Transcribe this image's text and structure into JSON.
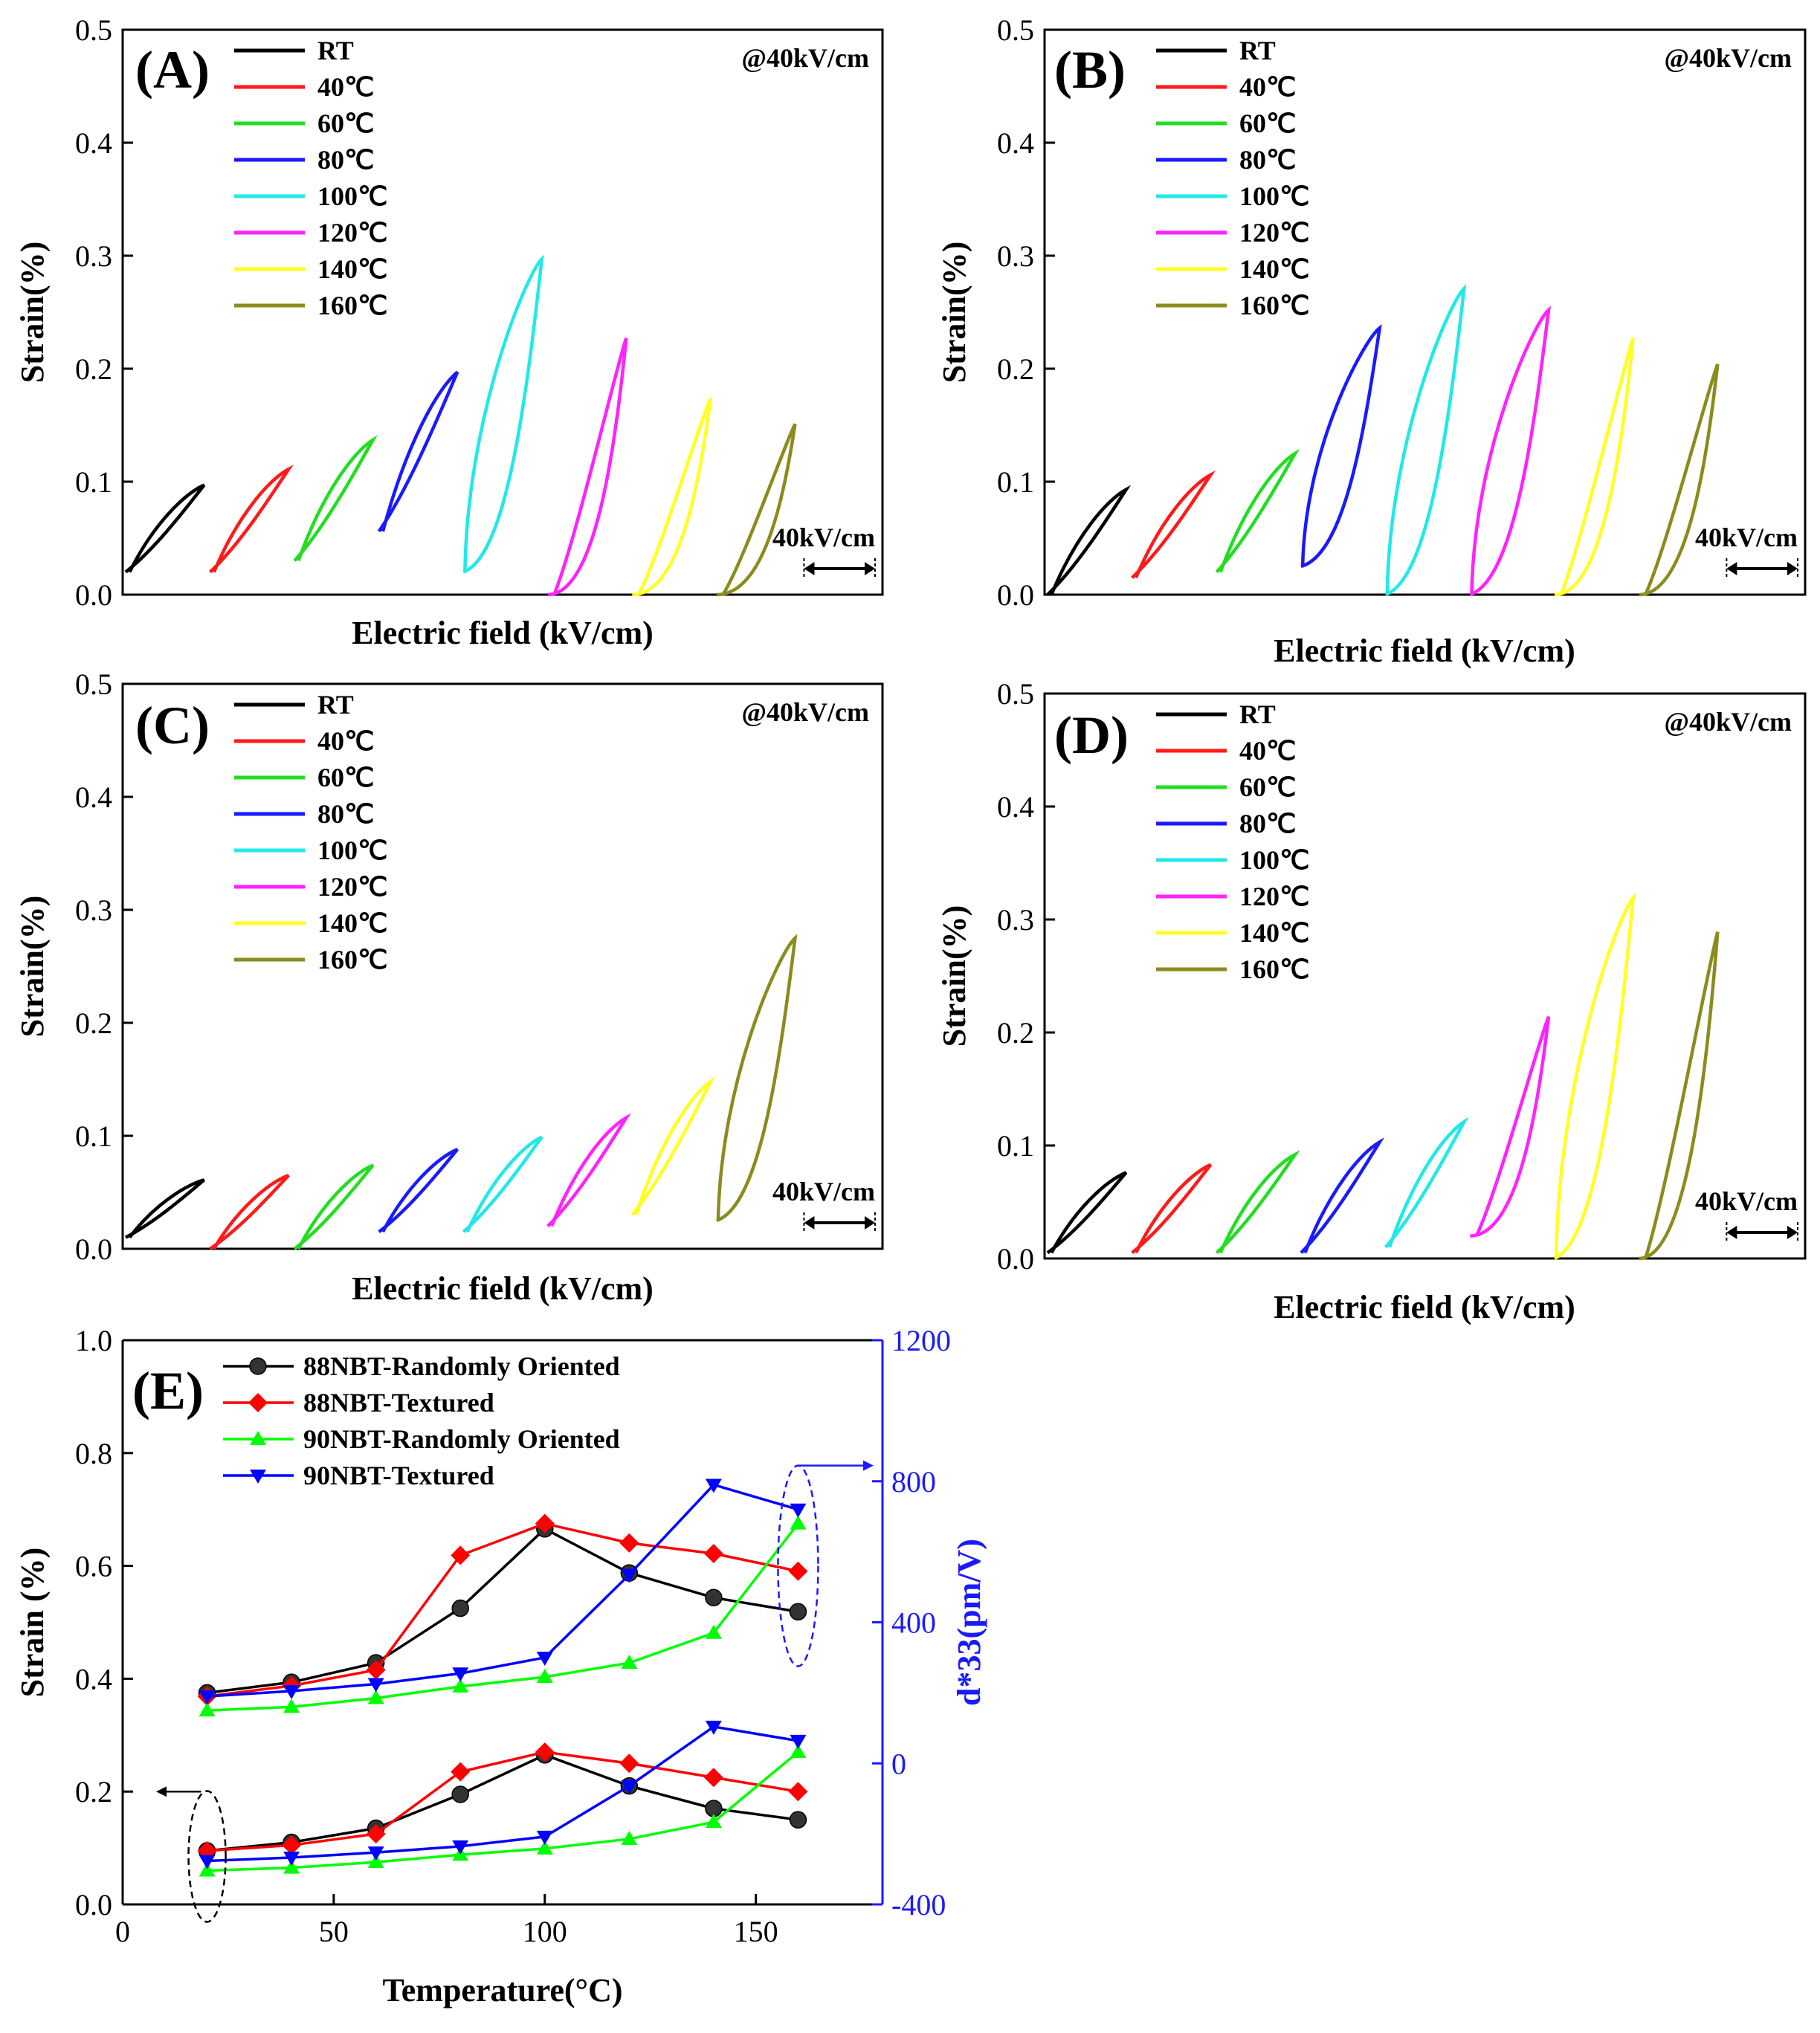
{
  "figure": {
    "colors": {
      "RT": "#000000",
      "40℃": "#ff1a1a",
      "60℃": "#22dd22",
      "80℃": "#1a1aff",
      "100℃": "#22e8e8",
      "120℃": "#ff22ff",
      "140℃": "#ffff22",
      "160℃": "#8b8b1e"
    },
    "series_colors_e": {
      "88NBT-Randomly Oriented": "#000000",
      "88NBT-Textured": "#ff0000",
      "90NBT-Randomly Oriented": "#00ff00",
      "90NBT-Textured": "#0000ff"
    }
  },
  "chart_data": [
    {
      "panel": "(A)",
      "type": "line",
      "description": "strain-field loops",
      "note": "@40kV/cm",
      "field_scale_label": "40kV/cm",
      "xlabel": "Electric field (kV/cm)",
      "ylabel": "Strain(%)",
      "ylim": [
        0,
        0.5
      ],
      "yticks": [
        "0.0",
        "0.1",
        "0.2",
        "0.3",
        "0.4",
        "0.5"
      ],
      "legend": [
        "RT",
        "40℃",
        "60℃",
        "80℃",
        "100℃",
        "120℃",
        "140℃",
        "160℃"
      ],
      "loops": [
        {
          "name": "RT",
          "start": 0.02,
          "peak": 0.097,
          "shape": "lin"
        },
        {
          "name": "40℃",
          "start": 0.02,
          "peak": 0.111,
          "shape": "lin"
        },
        {
          "name": "60℃",
          "start": 0.03,
          "peak": 0.137,
          "shape": "lin"
        },
        {
          "name": "80℃",
          "start": 0.056,
          "peak": 0.197,
          "shape": "lin"
        },
        {
          "name": "100℃",
          "start": 0.02,
          "peak": 0.297,
          "shape": "wide"
        },
        {
          "name": "120℃",
          "start": 0.0,
          "peak": 0.227,
          "shape": "curve"
        },
        {
          "name": "140℃",
          "start": 0.0,
          "peak": 0.174,
          "shape": "curve"
        },
        {
          "name": "160℃",
          "start": 0.0,
          "peak": 0.151,
          "shape": "curve"
        }
      ]
    },
    {
      "panel": "(B)",
      "type": "line",
      "description": "strain-field loops",
      "note": "@40kV/cm",
      "field_scale_label": "40kV/cm",
      "xlabel": "Electric field (kV/cm)",
      "ylabel": "Strain(%)",
      "ylim": [
        0,
        0.5
      ],
      "yticks": [
        "0.0",
        "0.1",
        "0.2",
        "0.3",
        "0.4",
        "0.5"
      ],
      "legend": [
        "RT",
        "40℃",
        "60℃",
        "80℃",
        "100℃",
        "120℃",
        "140℃",
        "160℃"
      ],
      "loops": [
        {
          "name": "RT",
          "start": 0.0,
          "peak": 0.093,
          "shape": "lin"
        },
        {
          "name": "40℃",
          "start": 0.015,
          "peak": 0.106,
          "shape": "lin"
        },
        {
          "name": "60℃",
          "start": 0.02,
          "peak": 0.125,
          "shape": "lin"
        },
        {
          "name": "80℃",
          "start": 0.025,
          "peak": 0.236,
          "shape": "wide"
        },
        {
          "name": "100℃",
          "start": 0.0,
          "peak": 0.271,
          "shape": "wide"
        },
        {
          "name": "120℃",
          "start": 0.0,
          "peak": 0.252,
          "shape": "wide"
        },
        {
          "name": "140℃",
          "start": 0.0,
          "peak": 0.227,
          "shape": "curve"
        },
        {
          "name": "160℃",
          "start": 0.0,
          "peak": 0.204,
          "shape": "curve"
        }
      ]
    },
    {
      "panel": "(C)",
      "type": "line",
      "description": "strain-field loops",
      "note": "@40kV/cm",
      "field_scale_label": "40kV/cm",
      "xlabel": "Electric field (kV/cm)",
      "ylabel": "Strain(%)",
      "ylim": [
        0,
        0.5
      ],
      "yticks": [
        "0.0",
        "0.1",
        "0.2",
        "0.3",
        "0.4",
        "0.5"
      ],
      "legend": [
        "RT",
        "40℃",
        "60℃",
        "80℃",
        "100℃",
        "120℃",
        "140℃",
        "160℃"
      ],
      "loops": [
        {
          "name": "RT",
          "start": 0.01,
          "peak": 0.061,
          "shape": "lin"
        },
        {
          "name": "40℃",
          "start": 0.0,
          "peak": 0.065,
          "shape": "lin"
        },
        {
          "name": "60℃",
          "start": 0.0,
          "peak": 0.074,
          "shape": "lin"
        },
        {
          "name": "80℃",
          "start": 0.015,
          "peak": 0.088,
          "shape": "lin"
        },
        {
          "name": "100℃",
          "start": 0.015,
          "peak": 0.099,
          "shape": "lin"
        },
        {
          "name": "120℃",
          "start": 0.02,
          "peak": 0.116,
          "shape": "lin"
        },
        {
          "name": "140℃",
          "start": 0.03,
          "peak": 0.148,
          "shape": "lin"
        },
        {
          "name": "160℃",
          "start": 0.025,
          "peak": 0.275,
          "shape": "wide"
        }
      ]
    },
    {
      "panel": "(D)",
      "type": "line",
      "description": "strain-field loops",
      "note": "@40kV/cm",
      "field_scale_label": "40kV/cm",
      "xlabel": "Electric field (kV/cm)",
      "ylabel": "Strain(%)",
      "ylim": [
        0,
        0.5
      ],
      "yticks": [
        "0.0",
        "0.1",
        "0.2",
        "0.3",
        "0.4",
        "0.5"
      ],
      "legend": [
        "RT",
        "40℃",
        "60℃",
        "80℃",
        "100℃",
        "120℃",
        "140℃",
        "160℃"
      ],
      "loops": [
        {
          "name": "RT",
          "start": 0.005,
          "peak": 0.076,
          "shape": "lin"
        },
        {
          "name": "40℃",
          "start": 0.005,
          "peak": 0.083,
          "shape": "lin"
        },
        {
          "name": "60℃",
          "start": 0.005,
          "peak": 0.092,
          "shape": "lin"
        },
        {
          "name": "80℃",
          "start": 0.005,
          "peak": 0.103,
          "shape": "lin"
        },
        {
          "name": "100℃",
          "start": 0.01,
          "peak": 0.121,
          "shape": "lin"
        },
        {
          "name": "120℃",
          "start": 0.02,
          "peak": 0.214,
          "shape": "curve"
        },
        {
          "name": "140℃",
          "start": 0.0,
          "peak": 0.319,
          "shape": "wide"
        },
        {
          "name": "160℃",
          "start": 0.0,
          "peak": 0.289,
          "shape": "curve"
        }
      ]
    },
    {
      "panel": "(E)",
      "type": "line",
      "xlabel": "Temperature(°C)",
      "ylabel": "Strain (%)",
      "y2label": "d*33(pm/V)",
      "x": [
        20,
        40,
        60,
        80,
        100,
        120,
        140,
        160
      ],
      "xlim": [
        0,
        180
      ],
      "xticks": [
        "0",
        "50",
        "100",
        "150"
      ],
      "ylim": [
        0,
        1.0
      ],
      "yticks": [
        "0.0",
        "0.2",
        "0.4",
        "0.6",
        "0.8",
        "1.0"
      ],
      "y2lim": [
        -400,
        1200
      ],
      "y2ticks": [
        "-400",
        "0",
        "400",
        "800",
        "1200"
      ],
      "legend": [
        "88NBT-Randomly Oriented",
        "88NBT-Textured",
        "90NBT-Randomly Oriented",
        "90NBT-Textured"
      ],
      "strain_series": [
        {
          "name": "88NBT-Randomly Oriented",
          "values": [
            0.095,
            0.11,
            0.135,
            0.195,
            0.265,
            0.21,
            0.17,
            0.15
          ]
        },
        {
          "name": "88NBT-Textured",
          "values": [
            0.095,
            0.105,
            0.125,
            0.235,
            0.27,
            0.25,
            0.225,
            0.2
          ]
        },
        {
          "name": "90NBT-Randomly Oriented",
          "values": [
            0.06,
            0.065,
            0.075,
            0.088,
            0.099,
            0.116,
            0.146,
            0.27
          ]
        },
        {
          "name": "90NBT-Textured",
          "values": [
            0.077,
            0.083,
            0.092,
            0.103,
            0.12,
            0.21,
            0.315,
            0.29
          ]
        }
      ],
      "d33_series": [
        {
          "name": "88NBT-Randomly Oriented",
          "values": [
            200,
            230,
            285,
            440,
            665,
            540,
            470,
            430
          ]
        },
        {
          "name": "88NBT-Textured",
          "values": [
            190,
            220,
            265,
            590,
            680,
            625,
            595,
            545
          ]
        },
        {
          "name": "90NBT-Randomly Oriented",
          "values": [
            150,
            160,
            185,
            218,
            245,
            285,
            370,
            680
          ]
        },
        {
          "name": "90NBT-Textured",
          "values": [
            190,
            205,
            225,
            255,
            300,
            535,
            790,
            720
          ]
        }
      ]
    }
  ]
}
